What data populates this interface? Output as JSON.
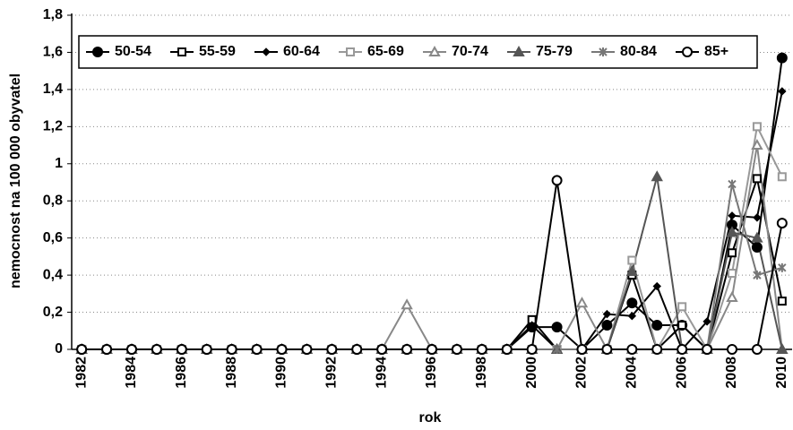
{
  "chart_data": {
    "type": "line",
    "y_label": "nemocnost na 100 000 obyvatel",
    "x_label": "rok",
    "x": [
      1982,
      1983,
      1984,
      1985,
      1986,
      1987,
      1988,
      1989,
      1990,
      1991,
      1992,
      1993,
      1994,
      1995,
      1996,
      1997,
      1998,
      1999,
      2000,
      2001,
      2002,
      2003,
      2004,
      2005,
      2006,
      2007,
      2008,
      2009,
      2010
    ],
    "xlim": [
      1981.6,
      2010.4
    ],
    "xticks": [
      1982,
      1984,
      1986,
      1988,
      1990,
      1992,
      1994,
      1996,
      1998,
      2000,
      2002,
      2004,
      2006,
      2008,
      2010
    ],
    "ylim": [
      0,
      1.8
    ],
    "yticks": [
      0,
      {
        "value": 0.2,
        "label": "0,2"
      },
      {
        "value": 0.4,
        "label": "0,4"
      },
      {
        "value": 0.6,
        "label": "0,6"
      },
      {
        "value": 0.8,
        "label": "0,8"
      },
      1,
      {
        "value": 1.2,
        "label": "1,2"
      },
      {
        "value": 1.4,
        "label": "1,4"
      },
      {
        "value": 1.6,
        "label": "1,6"
      },
      {
        "value": 1.8,
        "label": "1,8"
      }
    ],
    "grid": true,
    "series": [
      {
        "name": "50-54",
        "color": "#000000",
        "marker": "circle",
        "marker_filled": true,
        "values": [
          0,
          0,
          0,
          0,
          0,
          0,
          0,
          0,
          0,
          0,
          0,
          0,
          0,
          0,
          0,
          0,
          0,
          0,
          0.12,
          0.12,
          0,
          0.13,
          0.25,
          0.13,
          0.13,
          0,
          0.67,
          0.55,
          1.57
        ]
      },
      {
        "name": "55-59",
        "color": "#000000",
        "marker": "square",
        "marker_filled": false,
        "values": [
          0,
          0,
          0,
          0,
          0,
          0,
          0,
          0,
          0,
          0,
          0,
          0,
          0,
          0,
          0,
          0,
          0,
          0,
          0.16,
          0,
          0,
          0,
          0.4,
          0,
          0.13,
          0,
          0.52,
          0.92,
          0.26
        ]
      },
      {
        "name": "60-64",
        "color": "#000000",
        "marker": "diamond",
        "marker_filled": true,
        "values": [
          0,
          0,
          0,
          0,
          0,
          0,
          0,
          0,
          0,
          0,
          0,
          0,
          0,
          0,
          0,
          0,
          0,
          0,
          0.13,
          0,
          0,
          0.19,
          0.18,
          0.34,
          0,
          0.15,
          0.72,
          0.71,
          1.39
        ]
      },
      {
        "name": "65-69",
        "color": "#999999",
        "marker": "square",
        "marker_filled": false,
        "values": [
          0,
          0,
          0,
          0,
          0,
          0,
          0,
          0,
          0,
          0,
          0,
          0,
          0,
          0,
          0,
          0,
          0,
          0,
          0,
          0,
          0,
          0,
          0.48,
          0,
          0.23,
          0,
          0.41,
          1.2,
          0.93
        ]
      },
      {
        "name": "70-74",
        "color": "#888888",
        "marker": "triangle",
        "marker_filled": false,
        "values": [
          0,
          0,
          0,
          0,
          0,
          0,
          0,
          0,
          0,
          0,
          0,
          0,
          0,
          0.24,
          0,
          0,
          0,
          0,
          0,
          0,
          0.25,
          0,
          0,
          0,
          0,
          0,
          0.28,
          1.1,
          0
        ]
      },
      {
        "name": "75-79",
        "color": "#555555",
        "marker": "triangle",
        "marker_filled": true,
        "values": [
          0,
          0,
          0,
          0,
          0,
          0,
          0,
          0,
          0,
          0,
          0,
          0,
          0,
          0,
          0,
          0,
          0,
          0,
          0,
          0,
          0,
          0,
          0.42,
          0.93,
          0,
          0,
          0.63,
          0.6,
          0
        ]
      },
      {
        "name": "80-84",
        "color": "#777777",
        "marker": "star",
        "marker_filled": true,
        "values": [
          0,
          0,
          0,
          0,
          0,
          0,
          0,
          0,
          0,
          0,
          0,
          0,
          0,
          0,
          0,
          0,
          0,
          0,
          0,
          0,
          0,
          0,
          0,
          0,
          0,
          0,
          0.89,
          0.4,
          0.44
        ]
      },
      {
        "name": "85+",
        "color": "#000000",
        "marker": "circle",
        "marker_filled": false,
        "values": [
          0,
          0,
          0,
          0,
          0,
          0,
          0,
          0,
          0,
          0,
          0,
          0,
          0,
          0,
          0,
          0,
          0,
          0,
          0,
          0.91,
          0,
          0,
          0,
          0,
          0,
          0,
          0,
          0,
          0.68
        ]
      }
    ]
  }
}
